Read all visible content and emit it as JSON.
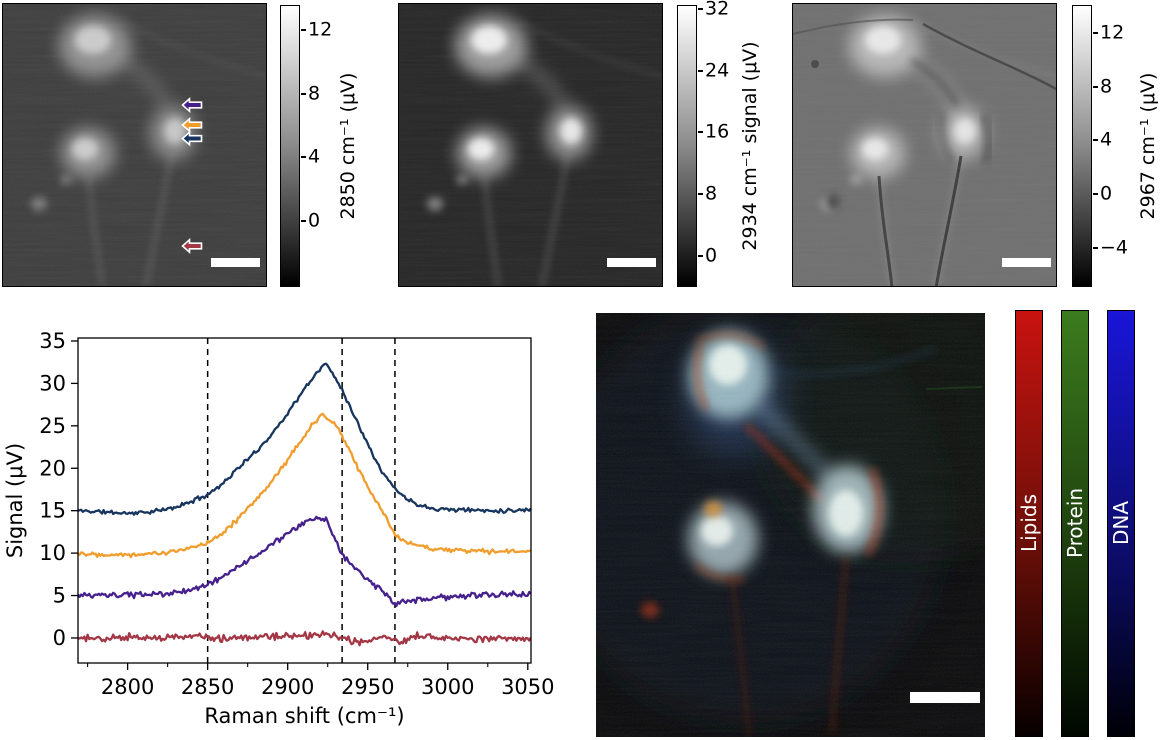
{
  "panels": {
    "image_2850": {
      "colorbar": {
        "label": "2850 cm⁻¹ (μV)",
        "ticks": [
          12,
          8,
          4,
          0
        ],
        "vmin": -4.2,
        "vmax": 13.5
      },
      "arrows": [
        {
          "name": "purple-arrow",
          "color": "#46208c"
        },
        {
          "name": "orange-arrow",
          "color": "#f09d2e"
        },
        {
          "name": "navy-arrow",
          "color": "#17355e"
        },
        {
          "name": "red-arrow",
          "color": "#a43745"
        }
      ]
    },
    "image_2934": {
      "colorbar": {
        "label": "2934 cm⁻¹ signal (μV)",
        "ticks": [
          32,
          24,
          16,
          8,
          0
        ],
        "vmin": -4.2,
        "vmax": 32.4
      }
    },
    "image_2967": {
      "colorbar": {
        "label": "2967 cm⁻¹ (μV)",
        "ticks": [
          12,
          8,
          4,
          0,
          -4
        ],
        "vmin": -7,
        "vmax": 14
      }
    },
    "composite": {
      "channels": [
        {
          "label": "Lipids",
          "color_top": "#c81310",
          "color_mid": "#6a0f08",
          "color_bottom": "#070000"
        },
        {
          "label": "Protein",
          "color_top": "#3c7c1e",
          "color_mid": "#1e400e",
          "color_bottom": "#000700"
        },
        {
          "label": "DNA",
          "color_top": "#1a15d8",
          "color_mid": "#0d0d70",
          "color_bottom": "#000007"
        }
      ]
    }
  },
  "chart_data": {
    "type": "line",
    "xlabel": "Raman shift (cm⁻¹)",
    "ylabel": "Signal (μV)",
    "xlim": [
      2769,
      3052
    ],
    "ylim": [
      -2.95,
      35.35
    ],
    "xticks": [
      2800,
      2850,
      2900,
      2950,
      3000,
      3050
    ],
    "xticks_minor": [
      2775,
      2825,
      2875,
      2925,
      2975,
      3025
    ],
    "yticks": [
      0,
      5,
      10,
      15,
      20,
      25,
      30,
      35
    ],
    "dashed_lines_x": [
      2850,
      2934,
      2967
    ],
    "series": [
      {
        "name": "dark-red",
        "color": "#a43745",
        "seed": 44,
        "noise": 1.0,
        "x": [
          2770,
          2785,
          2800,
          2815,
          2830,
          2845,
          2855,
          2865,
          2875,
          2885,
          2895,
          2905,
          2915,
          2922,
          2928,
          2935,
          2942,
          2948,
          2955,
          2962,
          2970,
          2978,
          2990,
          3005,
          3020,
          3035,
          3050
        ],
        "y": [
          0.0,
          -0.1,
          0.1,
          0.0,
          0.1,
          0.2,
          0.0,
          -0.1,
          0.1,
          0.2,
          0.1,
          0.2,
          0.3,
          0.5,
          0.2,
          -0.1,
          -0.4,
          -0.5,
          -0.1,
          0.1,
          -0.5,
          0.2,
          0.1,
          0.0,
          -0.1,
          0.0,
          -0.1
        ]
      },
      {
        "name": "purple",
        "color": "#46208c",
        "seed": 33,
        "noise": 0.8,
        "x": [
          2770,
          2790,
          2810,
          2825,
          2840,
          2850,
          2860,
          2870,
          2880,
          2890,
          2900,
          2908,
          2914,
          2918,
          2921,
          2924,
          2927,
          2930,
          2934,
          2940,
          2947,
          2954,
          2960,
          2964,
          2967,
          2972,
          2980,
          2990,
          3000,
          3015,
          3035,
          3050
        ],
        "y": [
          5.0,
          5.0,
          5.1,
          5.2,
          5.7,
          6.3,
          7.3,
          8.5,
          9.7,
          11.0,
          12.3,
          13.2,
          13.9,
          14.3,
          13.7,
          14.1,
          12.9,
          11.4,
          9.9,
          8.6,
          7.4,
          6.2,
          5.3,
          4.6,
          3.9,
          4.2,
          4.4,
          4.7,
          4.8,
          5.0,
          5.1,
          5.2
        ]
      },
      {
        "name": "orange",
        "color": "#f09d2e",
        "seed": 22,
        "noise": 0.7,
        "x": [
          2770,
          2780,
          2790,
          2800,
          2810,
          2820,
          2830,
          2840,
          2850,
          2860,
          2870,
          2880,
          2890,
          2900,
          2908,
          2914,
          2918,
          2921,
          2925,
          2929,
          2934,
          2940,
          2946,
          2952,
          2958,
          2963,
          2967,
          2975,
          2985,
          3000,
          3020,
          3050
        ],
        "y": [
          10.0,
          9.9,
          9.9,
          9.8,
          9.9,
          10.0,
          10.2,
          10.6,
          11.3,
          12.5,
          14.2,
          16.2,
          18.5,
          21.0,
          23.2,
          24.8,
          25.6,
          26.3,
          25.7,
          25.4,
          23.8,
          21.5,
          19.3,
          17.2,
          15.2,
          13.5,
          12.3,
          11.2,
          10.7,
          10.4,
          10.2,
          10.2
        ]
      },
      {
        "name": "navy",
        "color": "#17355e",
        "seed": 11,
        "noise": 0.6,
        "x": [
          2770,
          2780,
          2790,
          2800,
          2810,
          2820,
          2830,
          2840,
          2850,
          2860,
          2870,
          2880,
          2890,
          2900,
          2910,
          2918,
          2923,
          2928,
          2934,
          2940,
          2945,
          2950,
          2955,
          2960,
          2967,
          2975,
          2985,
          2995,
          3010,
          3030,
          3050
        ],
        "y": [
          15.0,
          14.9,
          14.8,
          14.7,
          14.8,
          15.0,
          15.4,
          16.1,
          16.9,
          18.3,
          20.2,
          21.9,
          24.0,
          26.5,
          29.2,
          31.2,
          32.4,
          31.2,
          29.3,
          26.8,
          24.8,
          23.0,
          21.0,
          19.3,
          17.6,
          16.3,
          15.5,
          15.2,
          15.1,
          15.0,
          15.1
        ]
      }
    ]
  }
}
